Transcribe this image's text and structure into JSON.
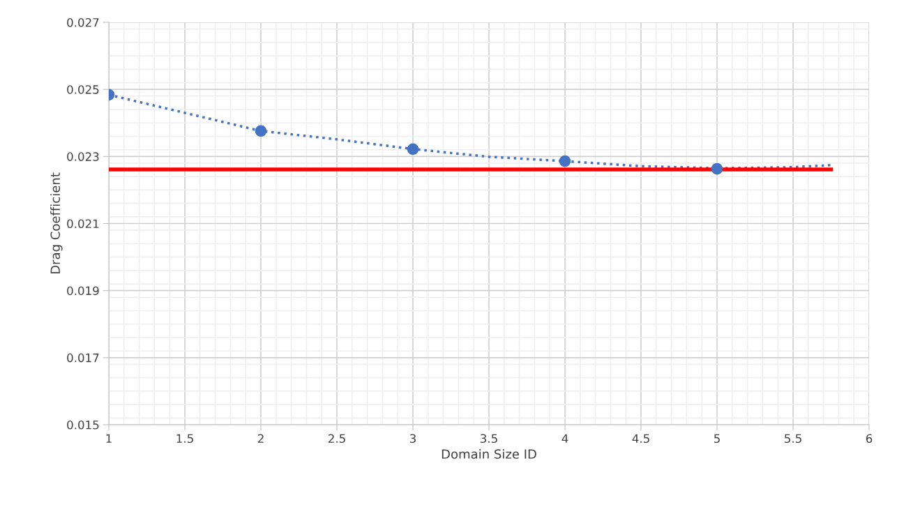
{
  "chart_data": {
    "type": "scatter",
    "xlabel": "Domain Size ID",
    "ylabel": "Drag Coefficient",
    "xlim": [
      1,
      6
    ],
    "xticks": [
      1,
      1.5,
      2,
      2.5,
      3,
      3.5,
      4,
      4.5,
      5,
      5.5,
      6
    ],
    "ylim": [
      0.015,
      0.027
    ],
    "yticks": [
      0.015,
      0.017,
      0.019,
      0.021,
      0.023,
      0.025,
      0.027
    ],
    "grid": true,
    "legend": false,
    "series": [
      {
        "type": "line",
        "color": "#4472c4",
        "line_style": "dotted",
        "marker": "none",
        "x": [
          1,
          1.5,
          2,
          2.5,
          3,
          3.5,
          4,
          4.5,
          5,
          5.5,
          5.75
        ],
        "values": [
          0.02484,
          0.0243,
          0.02376,
          0.02351,
          0.02322,
          0.02299,
          0.02286,
          0.02271,
          0.02265,
          0.02268,
          0.02274
        ]
      },
      {
        "type": "line",
        "color": "#ff0000",
        "line_style": "solid",
        "marker": "none",
        "x": [
          1,
          5.75
        ],
        "values": [
          0.02261,
          0.02261
        ]
      },
      {
        "color": "#4472c4",
        "marker": "circle",
        "x": [
          1,
          2,
          3,
          4,
          5
        ],
        "values": [
          0.02484,
          0.02376,
          0.02322,
          0.02286,
          0.02263
        ]
      }
    ]
  }
}
